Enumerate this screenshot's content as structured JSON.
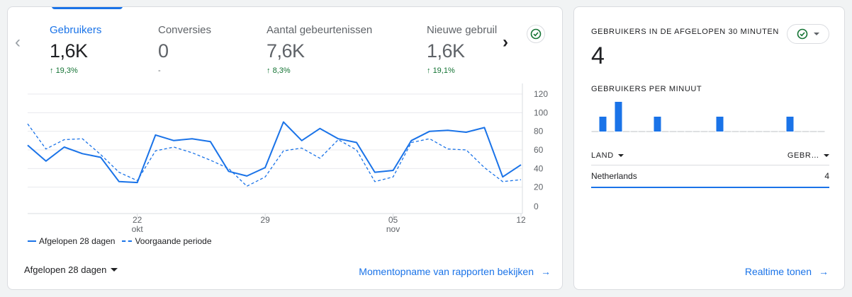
{
  "metrics": [
    {
      "label": "Gebruikers",
      "value": "1,6K",
      "change": "19,3%",
      "trend": "up"
    },
    {
      "label": "Conversies",
      "value": "0",
      "change": "-",
      "trend": "none"
    },
    {
      "label": "Aantal gebeurtenissen",
      "value": "7,6K",
      "change": "8,3%",
      "trend": "up"
    },
    {
      "label": "Nieuwe gebruil",
      "value": "1,6K",
      "change": "19,1%",
      "trend": "up"
    }
  ],
  "legend": {
    "current": "Afgelopen 28 dagen",
    "previous": "Voorgaande periode"
  },
  "date_range": "Afgelopen 28 dagen",
  "snapshot_link": "Momentopname van rapporten bekijken",
  "realtime": {
    "title": "GEBRUIKERS IN DE AFGELOPEN 30 MINUTEN",
    "count": "4",
    "per_minute_title": "GEBRUIKERS PER MINUUT",
    "per_minute_values": [
      0,
      1,
      0,
      2,
      0,
      0,
      0,
      0,
      1,
      0,
      0,
      0,
      0,
      0,
      0,
      0,
      1,
      0,
      0,
      0,
      0,
      0,
      0,
      0,
      0,
      1,
      0,
      0,
      0,
      0
    ],
    "table": {
      "col_country": "LAND",
      "col_users": "GEBR…",
      "rows": [
        {
          "country": "Netherlands",
          "users": "4"
        }
      ]
    },
    "link": "Realtime tonen"
  },
  "colors": {
    "accent": "#1a73e8",
    "positive": "#137333",
    "muted": "#5f6368"
  },
  "chart_data": {
    "type": "line",
    "y_ticks": [
      "120",
      "100",
      "80",
      "60",
      "40",
      "20",
      "0"
    ],
    "ylim": [
      0,
      120
    ],
    "x_ticks": [
      {
        "day": "22",
        "month": "okt"
      },
      {
        "day": "29",
        "month": ""
      },
      {
        "day": "05",
        "month": "nov"
      },
      {
        "day": "12",
        "month": ""
      }
    ],
    "x": [
      "16 okt",
      "17 okt",
      "18 okt",
      "19 okt",
      "20 okt",
      "21 okt",
      "22 okt",
      "23 okt",
      "24 okt",
      "25 okt",
      "26 okt",
      "27 okt",
      "28 okt",
      "29 okt",
      "30 okt",
      "31 okt",
      "01 nov",
      "02 nov",
      "03 nov",
      "04 nov",
      "05 nov",
      "06 nov",
      "07 nov",
      "08 nov",
      "09 nov",
      "10 nov",
      "11 nov",
      "12 nov"
    ],
    "series": [
      {
        "name": "Afgelopen 28 dagen",
        "style": "solid",
        "values": [
          65,
          48,
          63,
          56,
          52,
          26,
          25,
          76,
          70,
          72,
          69,
          37,
          32,
          41,
          90,
          70,
          83,
          72,
          68,
          36,
          38,
          70,
          80,
          81,
          79,
          84,
          31,
          44
        ]
      },
      {
        "name": "Voorgaande periode",
        "style": "dashed",
        "values": [
          88,
          61,
          71,
          72,
          55,
          36,
          27,
          59,
          63,
          57,
          49,
          40,
          21,
          31,
          59,
          62,
          51,
          71,
          60,
          26,
          31,
          68,
          72,
          61,
          60,
          41,
          26,
          28
        ]
      }
    ],
    "grid": true
  }
}
